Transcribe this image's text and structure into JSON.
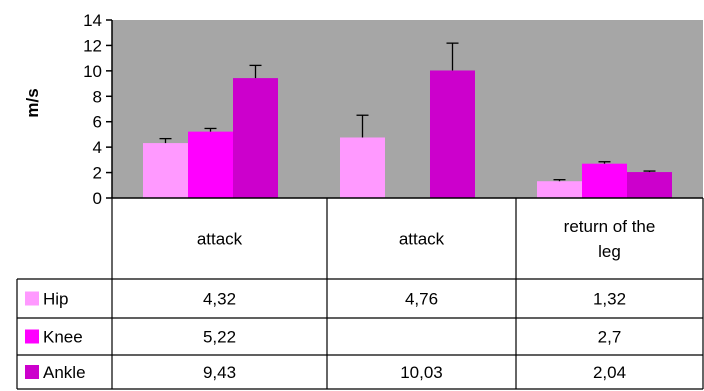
{
  "chart_data": {
    "type": "bar",
    "ylabel": "m/s",
    "ylim": [
      0,
      14
    ],
    "yticks": [
      0,
      2,
      4,
      6,
      8,
      10,
      12,
      14
    ],
    "plot_background": "#a6a6a6",
    "grid": false,
    "legend": "in data table below chart",
    "categories": [
      {
        "lines": [
          "attack"
        ]
      },
      {
        "lines": [
          "attack"
        ]
      },
      {
        "lines": [
          "return of the",
          "leg"
        ]
      }
    ],
    "series": [
      {
        "name": "Hip",
        "color": "#ff99ff",
        "values": [
          4.32,
          4.76,
          1.32
        ],
        "labels": [
          "4,32",
          "4,76",
          "1,32"
        ],
        "errors": [
          0.35,
          1.75,
          0.12
        ]
      },
      {
        "name": "Knee",
        "color": "#ff00ff",
        "values": [
          5.22,
          null,
          2.7
        ],
        "labels": [
          "5,22",
          "",
          "2,7"
        ],
        "errors": [
          0.25,
          null,
          0.15
        ]
      },
      {
        "name": "Ankle",
        "color": "#cc00cc",
        "values": [
          9.43,
          10.03,
          2.04
        ],
        "labels": [
          "9,43",
          "10,03",
          "2,04"
        ],
        "errors": [
          1.0,
          2.15,
          0.08
        ]
      }
    ]
  }
}
